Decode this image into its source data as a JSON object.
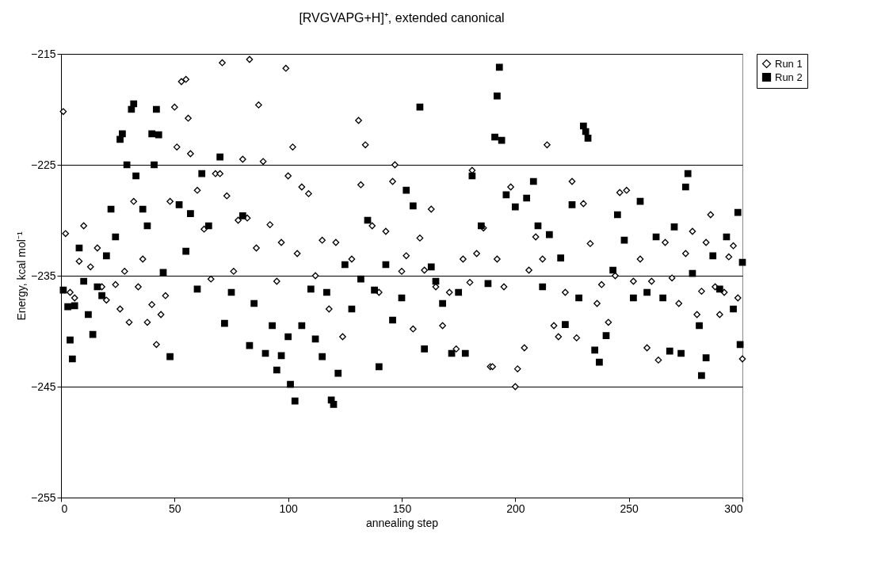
{
  "chart_data": {
    "type": "scatter",
    "title": "[RVGVAPG+H]⁺, extended canonical",
    "xlabel": "annealing step",
    "ylabel": "Energy, kcal mol⁻¹",
    "xlim": [
      0,
      300
    ],
    "xticks": [
      0,
      50,
      100,
      150,
      200,
      250,
      300
    ],
    "ylim": [
      -255,
      -215
    ],
    "yticks": [
      -255,
      -245,
      -235,
      -225,
      -215
    ],
    "grid": "y",
    "legend": "right",
    "series": [
      {
        "name": "Run 1",
        "color": "#000000",
        "marker": "diamond",
        "x": [
          1,
          2,
          4,
          6,
          8,
          10,
          13,
          16,
          18,
          20,
          24,
          26,
          28,
          30,
          32,
          34,
          36,
          38,
          40,
          42,
          44,
          46,
          48,
          50,
          51,
          53,
          55,
          56,
          57,
          60,
          63,
          66,
          68,
          70,
          71,
          73,
          76,
          78,
          80,
          82,
          83,
          86,
          87,
          89,
          92,
          95,
          97,
          99,
          100,
          102,
          104,
          106,
          109,
          112,
          115,
          118,
          121,
          124,
          128,
          131,
          132,
          134,
          137,
          140,
          143,
          146,
          147,
          150,
          152,
          155,
          158,
          160,
          163,
          165,
          168,
          171,
          174,
          177,
          180,
          181,
          183,
          186,
          189,
          190,
          192,
          195,
          198,
          200,
          201,
          204,
          206,
          209,
          212,
          214,
          217,
          219,
          222,
          225,
          227,
          230,
          233,
          236,
          238,
          241,
          244,
          246,
          249,
          252,
          255,
          258,
          260,
          263,
          266,
          269,
          272,
          275,
          278,
          280,
          282,
          284,
          286,
          288,
          290,
          292,
          294,
          296,
          298,
          300
        ],
        "values": [
          -220.2,
          -231.2,
          -236.5,
          -237,
          -233.7,
          -230.5,
          -234.2,
          -232.5,
          -236,
          -237.2,
          -235.8,
          -238,
          -234.6,
          -239.2,
          -228.3,
          -236,
          -233.5,
          -239.2,
          -237.6,
          -241.2,
          -238.5,
          -236.8,
          -228.3,
          -219.8,
          -223.4,
          -217.5,
          -217.3,
          -220.8,
          -224,
          -227.3,
          -230.8,
          -235.3,
          -225.8,
          -225.8,
          -215.8,
          -227.8,
          -234.6,
          -230,
          -224.5,
          -229.8,
          -215.5,
          -232.5,
          -219.6,
          -224.7,
          -230.4,
          -235.5,
          -232,
          -216.3,
          -226,
          -223.4,
          -233,
          -227,
          -227.6,
          -235,
          -231.8,
          -238,
          -232,
          -240.5,
          -233.5,
          -221,
          -226.8,
          -223.2,
          -230.5,
          -236.5,
          -231,
          -226.5,
          -225,
          -234.6,
          -233.2,
          -239.8,
          -231.6,
          -234.5,
          -229,
          -236,
          -239.5,
          -236.5,
          -241.6,
          -233.5,
          -235.6,
          -225.5,
          -233,
          -230.7,
          -243.2,
          -243.2,
          -233.5,
          -236,
          -227,
          -245,
          -243.4,
          -241.5,
          -234.5,
          -231.5,
          -233.5,
          -223.2,
          -239.5,
          -240.5,
          -236.5,
          -226.5,
          -240.6,
          -228.5,
          -232.1,
          -237.5,
          -235.8,
          -239.2,
          -235,
          -227.5,
          -227.3,
          -235.5,
          -233.5,
          -241.5,
          -235.5,
          -242.6,
          -232,
          -235.2,
          -237.5,
          -233,
          -231,
          -238.5,
          -236.4,
          -232,
          -229.5,
          -236,
          -238.5,
          -236.5,
          -233.3,
          -232.3,
          -237,
          -242.5
        ]
      },
      {
        "name": "Run 2",
        "color": "#000000",
        "marker": "square",
        "x": [
          1,
          3,
          4,
          5,
          6,
          8,
          10,
          12,
          14,
          16,
          18,
          20,
          22,
          24,
          26,
          27,
          29,
          31,
          32,
          33,
          36,
          38,
          40,
          41,
          42,
          43,
          45,
          48,
          52,
          55,
          57,
          60,
          62,
          65,
          70,
          72,
          75,
          80,
          83,
          85,
          90,
          93,
          95,
          97,
          100,
          101,
          103,
          106,
          110,
          112,
          115,
          117,
          119,
          120,
          122,
          125,
          128,
          132,
          135,
          138,
          140,
          143,
          146,
          150,
          152,
          155,
          158,
          160,
          163,
          165,
          168,
          172,
          175,
          178,
          181,
          185,
          188,
          191,
          192,
          193,
          194,
          196,
          200,
          205,
          208,
          210,
          212,
          215,
          220,
          222,
          225,
          228,
          230,
          231,
          232,
          235,
          237,
          240,
          243,
          245,
          248,
          252,
          255,
          258,
          262,
          265,
          268,
          270,
          273,
          275,
          276,
          278,
          281,
          282,
          284,
          287,
          290,
          293,
          296,
          298,
          299,
          300
        ],
        "values": [
          -236.3,
          -237.8,
          -240.8,
          -242.5,
          -237.7,
          -232.5,
          -235.5,
          -238.5,
          -240.3,
          -236,
          -236.8,
          -233.2,
          -229,
          -231.5,
          -222.7,
          -222.2,
          -225,
          -220,
          -219.5,
          -226,
          -229,
          -230.5,
          -222.2,
          -225,
          -220,
          -222.3,
          -234.7,
          -242.3,
          -228.6,
          -232.8,
          -229.4,
          -236.2,
          -225.8,
          -230.5,
          -224.3,
          -239.3,
          -236.5,
          -229.6,
          -241.3,
          -237.5,
          -242,
          -239.5,
          -243.5,
          -242.2,
          -240.5,
          -244.8,
          -246.3,
          -239.5,
          -236.2,
          -240.7,
          -242.3,
          -236.5,
          -246.2,
          -246.6,
          -243.8,
          -234,
          -238,
          -235.3,
          -230,
          -236.3,
          -243.2,
          -234,
          -239,
          -237,
          -227.3,
          -228.7,
          -219.8,
          -241.6,
          -234.2,
          -235.5,
          -237.5,
          -242,
          -236.5,
          -242,
          -226,
          -230.5,
          -235.7,
          -222.5,
          -218.8,
          -216.2,
          -222.8,
          -227.7,
          -228.8,
          -228,
          -226.5,
          -230.5,
          -236,
          -231.3,
          -233.4,
          -239.4,
          -228.6,
          -237,
          -221.5,
          -222,
          -222.6,
          -241.7,
          -242.8,
          -240.4,
          -234.5,
          -229.5,
          -231.8,
          -237,
          -228.3,
          -236.5,
          -231.5,
          -237,
          -241.8,
          -230.6,
          -242,
          -227,
          -225.8,
          -234.8,
          -239.5,
          -244,
          -242.4,
          -233.2,
          -236.2,
          -231.5,
          -238,
          -229.3,
          -241.2,
          -233.8
        ]
      }
    ]
  }
}
